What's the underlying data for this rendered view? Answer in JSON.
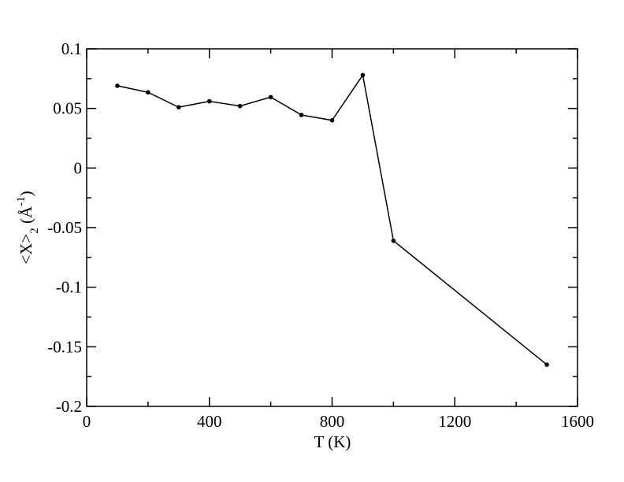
{
  "chart_data": {
    "type": "line",
    "xlabel": "T (K)",
    "ylabel": [
      "<X>",
      "2",
      " (Å",
      "-1",
      ")"
    ],
    "x": [
      100,
      200,
      300,
      400,
      500,
      600,
      700,
      800,
      900,
      1000,
      1500
    ],
    "series": [
      {
        "color": "#000000",
        "values": [
          0.069,
          0.0635,
          0.051,
          0.056,
          0.052,
          0.0595,
          0.0445,
          0.04,
          0.078,
          -0.061,
          -0.165
        ]
      }
    ],
    "xlim": [
      0,
      1600
    ],
    "xticks": [
      0,
      400,
      800,
      1200,
      1600
    ],
    "ylim": [
      -0.2,
      0.1
    ],
    "yticks": [
      -0.2,
      -0.15,
      -0.1,
      -0.05,
      0,
      0.05,
      0.1
    ],
    "grid": false
  }
}
